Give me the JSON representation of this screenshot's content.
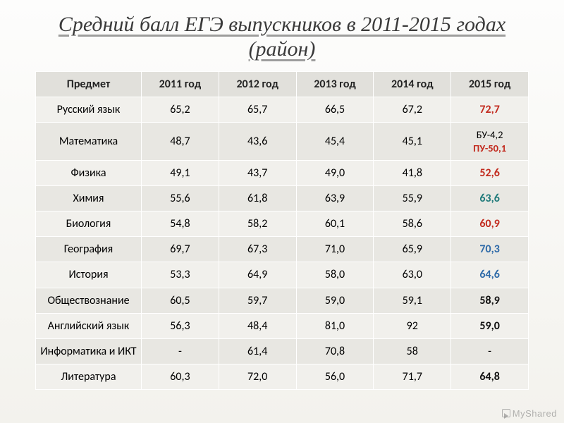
{
  "title": "Средний балл ЕГЭ выпускников в 2011-2015 годах (район)",
  "columns": [
    "Предмет",
    "2011 год",
    "2012 год",
    "2013 год",
    "2014 год",
    "2015 год"
  ],
  "rows": [
    {
      "subject": "Русский язык",
      "cells": [
        "65,2",
        "65,7",
        "66,5",
        "67,2",
        {
          "text": "72,7",
          "cls": "hl-red"
        }
      ]
    },
    {
      "subject": "Математика",
      "cells": [
        "48,7",
        "43,6",
        "45,4",
        "45,1",
        {
          "html": "БУ-4,2<br><span class=\"hl-red\">ПУ-50,1</span>",
          "cls": "math-cell"
        }
      ]
    },
    {
      "subject": "Физика",
      "cells": [
        "49,1",
        "43,7",
        "49,0",
        "41,8",
        {
          "text": "52,6",
          "cls": "hl-red"
        }
      ]
    },
    {
      "subject": "Химия",
      "cells": [
        "55,6",
        "61,8",
        "63,9",
        "55,9",
        {
          "text": "63,6",
          "cls": "hl-teal"
        }
      ]
    },
    {
      "subject": "Биология",
      "cells": [
        "54,8",
        "58,2",
        "60,1",
        "58,6",
        {
          "text": "60,9",
          "cls": "hl-red"
        }
      ]
    },
    {
      "subject": "География",
      "cells": [
        "69,7",
        "67,3",
        "71,0",
        "65,9",
        {
          "text": "70,3",
          "cls": "hl-blue"
        }
      ]
    },
    {
      "subject": "История",
      "cells": [
        "53,3",
        "64,9",
        "58,0",
        "63,0",
        {
          "text": "64,6",
          "cls": "hl-blue"
        }
      ]
    },
    {
      "subject": "Обществознание",
      "cells": [
        "60,5",
        "59,7",
        "59,0",
        "59,1",
        {
          "text": "58,9",
          "cls": "hl-black"
        }
      ]
    },
    {
      "subject": "Английский язык",
      "cells": [
        "56,3",
        "48,4",
        "81,0",
        "92",
        {
          "text": "59,0",
          "cls": "hl-black"
        }
      ]
    },
    {
      "subject": "Информатика и ИКТ",
      "cells": [
        "-",
        "61,4",
        "70,8",
        "58",
        "-"
      ]
    },
    {
      "subject": "Литература",
      "cells": [
        "60,3",
        "72,0",
        "56,0",
        "71,7",
        {
          "text": "64,8",
          "cls": "hl-black"
        }
      ]
    }
  ],
  "watermark": "MyShared",
  "style": {
    "title_fontsize": 30,
    "table_fontsize": 16,
    "header_bg": "#e1e0db",
    "row_odd_bg": "#f1f0ec",
    "row_even_bg": "#e8e7e2",
    "border_color": "#ffffff",
    "hl_red": "#c22a1e",
    "hl_teal": "#1f7a7a",
    "hl_blue": "#2e6aa8",
    "background_gradient": [
      "#fdfdfc",
      "#f3f2ed"
    ]
  }
}
